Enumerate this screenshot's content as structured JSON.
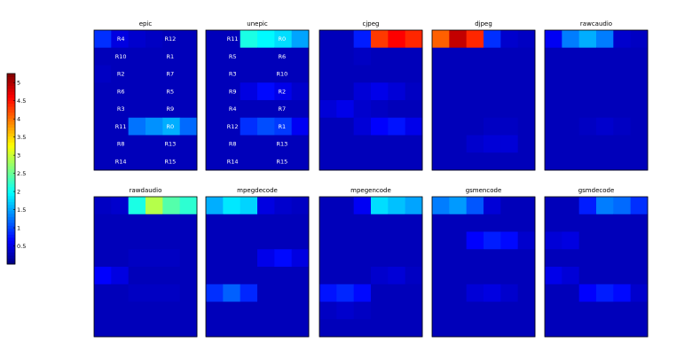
{
  "chart_data": {
    "type": "heatmap",
    "colormap": "jet",
    "vmin": 0,
    "vmax": 5.25,
    "colorbar": {
      "ticks": [
        0.5,
        1,
        1.5,
        2,
        2.5,
        3,
        3.5,
        4,
        4.5,
        5
      ],
      "labels": [
        "0.5",
        "1",
        "1.5",
        "2",
        "2.5",
        "3",
        "3.5",
        "4",
        "4.5",
        "5"
      ]
    },
    "panels": [
      {
        "title": "epic",
        "labels": [
          [
            "R4",
            "R12"
          ],
          [
            "R10",
            "R1"
          ],
          [
            "R2",
            "R7"
          ],
          [
            "R6",
            "R5"
          ],
          [
            "R3",
            "R9"
          ],
          [
            "R11",
            "R0"
          ],
          [
            "R8",
            "R13"
          ],
          [
            "R14",
            "R15"
          ]
        ],
        "values": [
          [
            0.9,
            0.5,
            0.4,
            0.35,
            0.3,
            0.3
          ],
          [
            0.3,
            0.3,
            0.3,
            0.3,
            0.3,
            0.3
          ],
          [
            0.35,
            0.3,
            0.3,
            0.3,
            0.3,
            0.3
          ],
          [
            0.3,
            0.3,
            0.3,
            0.3,
            0.3,
            0.3
          ],
          [
            0.3,
            0.3,
            0.3,
            0.3,
            0.3,
            0.3
          ],
          [
            0.3,
            0.3,
            1.25,
            1.4,
            1.55,
            1.2
          ],
          [
            0.3,
            0.3,
            0.3,
            0.3,
            0.3,
            0.3
          ],
          [
            0.3,
            0.3,
            0.3,
            0.3,
            0.3,
            0.3
          ]
        ]
      },
      {
        "title": "unepic",
        "labels": [
          [
            "R11",
            "R0"
          ],
          [
            "R5",
            "R6"
          ],
          [
            "R3",
            "R10"
          ],
          [
            "R9",
            "R2"
          ],
          [
            "R4",
            "R7"
          ],
          [
            "R12",
            "R1"
          ],
          [
            "R8",
            "R13"
          ],
          [
            "R14",
            "R15"
          ]
        ],
        "values": [
          [
            0.3,
            0.3,
            2.1,
            1.95,
            1.8,
            1.5
          ],
          [
            0.3,
            0.3,
            0.3,
            0.3,
            0.3,
            0.3
          ],
          [
            0.3,
            0.3,
            0.3,
            0.3,
            0.3,
            0.3
          ],
          [
            0.3,
            0.3,
            0.5,
            0.7,
            0.55,
            0.4
          ],
          [
            0.3,
            0.3,
            0.3,
            0.3,
            0.3,
            0.3
          ],
          [
            0.3,
            0.3,
            0.9,
            1.05,
            0.95,
            0.6
          ],
          [
            0.3,
            0.3,
            0.3,
            0.3,
            0.3,
            0.3
          ],
          [
            0.3,
            0.3,
            0.3,
            0.3,
            0.3,
            0.3
          ]
        ]
      },
      {
        "title": "cjpeg",
        "values": [
          [
            0.3,
            0.3,
            0.8,
            4.3,
            4.6,
            4.4
          ],
          [
            0.3,
            0.3,
            0.35,
            0.3,
            0.3,
            0.3
          ],
          [
            0.3,
            0.3,
            0.3,
            0.3,
            0.3,
            0.3
          ],
          [
            0.3,
            0.3,
            0.45,
            0.55,
            0.45,
            0.35
          ],
          [
            0.45,
            0.55,
            0.4,
            0.35,
            0.3,
            0.3
          ],
          [
            0.3,
            0.3,
            0.45,
            0.65,
            0.75,
            0.55
          ],
          [
            0.3,
            0.3,
            0.3,
            0.3,
            0.3,
            0.3
          ],
          [
            0.3,
            0.3,
            0.3,
            0.3,
            0.3,
            0.3
          ]
        ]
      },
      {
        "title": "djpeg",
        "values": [
          [
            4.1,
            4.9,
            4.4,
            0.9,
            0.4,
            0.35
          ],
          [
            0.3,
            0.3,
            0.3,
            0.3,
            0.3,
            0.3
          ],
          [
            0.3,
            0.3,
            0.3,
            0.3,
            0.3,
            0.3
          ],
          [
            0.3,
            0.3,
            0.3,
            0.3,
            0.3,
            0.3
          ],
          [
            0.3,
            0.3,
            0.3,
            0.3,
            0.3,
            0.3
          ],
          [
            0.3,
            0.3,
            0.3,
            0.35,
            0.35,
            0.3
          ],
          [
            0.3,
            0.3,
            0.4,
            0.45,
            0.45,
            0.3
          ],
          [
            0.3,
            0.3,
            0.3,
            0.3,
            0.3,
            0.3
          ]
        ]
      },
      {
        "title": "rawcaudio",
        "values": [
          [
            0.6,
            1.3,
            1.55,
            1.3,
            0.4,
            0.35
          ],
          [
            0.3,
            0.3,
            0.3,
            0.3,
            0.3,
            0.3
          ],
          [
            0.3,
            0.3,
            0.3,
            0.3,
            0.3,
            0.3
          ],
          [
            0.3,
            0.3,
            0.3,
            0.3,
            0.3,
            0.3
          ],
          [
            0.3,
            0.3,
            0.3,
            0.3,
            0.3,
            0.3
          ],
          [
            0.3,
            0.3,
            0.35,
            0.4,
            0.35,
            0.3
          ],
          [
            0.3,
            0.3,
            0.3,
            0.3,
            0.3,
            0.3
          ],
          [
            0.3,
            0.3,
            0.3,
            0.3,
            0.3,
            0.3
          ]
        ]
      },
      {
        "title": "rawdaudio",
        "values": [
          [
            0.35,
            0.4,
            2.1,
            2.9,
            2.4,
            2.2
          ],
          [
            0.3,
            0.3,
            0.3,
            0.3,
            0.3,
            0.3
          ],
          [
            0.3,
            0.3,
            0.3,
            0.3,
            0.3,
            0.3
          ],
          [
            0.3,
            0.3,
            0.35,
            0.35,
            0.35,
            0.3
          ],
          [
            0.65,
            0.5,
            0.3,
            0.3,
            0.3,
            0.3
          ],
          [
            0.3,
            0.3,
            0.35,
            0.35,
            0.35,
            0.3
          ],
          [
            0.3,
            0.3,
            0.3,
            0.3,
            0.3,
            0.3
          ],
          [
            0.3,
            0.3,
            0.3,
            0.3,
            0.3,
            0.3
          ]
        ]
      },
      {
        "title": "mpegdecode",
        "values": [
          [
            1.55,
            1.85,
            1.75,
            0.5,
            0.4,
            0.35
          ],
          [
            0.3,
            0.3,
            0.3,
            0.3,
            0.3,
            0.3
          ],
          [
            0.3,
            0.3,
            0.3,
            0.3,
            0.3,
            0.3
          ],
          [
            0.3,
            0.3,
            0.3,
            0.55,
            0.7,
            0.5
          ],
          [
            0.3,
            0.3,
            0.3,
            0.3,
            0.3,
            0.3
          ],
          [
            0.9,
            1.15,
            0.85,
            0.3,
            0.3,
            0.3
          ],
          [
            0.3,
            0.3,
            0.3,
            0.3,
            0.3,
            0.3
          ],
          [
            0.3,
            0.3,
            0.3,
            0.3,
            0.3,
            0.3
          ]
        ]
      },
      {
        "title": "mpegencode",
        "values": [
          [
            0.3,
            0.3,
            0.6,
            1.8,
            1.65,
            1.5
          ],
          [
            0.3,
            0.3,
            0.3,
            0.3,
            0.3,
            0.3
          ],
          [
            0.3,
            0.3,
            0.3,
            0.3,
            0.3,
            0.3
          ],
          [
            0.3,
            0.3,
            0.3,
            0.3,
            0.3,
            0.3
          ],
          [
            0.3,
            0.3,
            0.3,
            0.4,
            0.45,
            0.35
          ],
          [
            0.75,
            0.85,
            0.7,
            0.3,
            0.3,
            0.3
          ],
          [
            0.35,
            0.4,
            0.35,
            0.3,
            0.3,
            0.3
          ],
          [
            0.3,
            0.3,
            0.3,
            0.3,
            0.3,
            0.3
          ]
        ]
      },
      {
        "title": "gsmencode",
        "values": [
          [
            1.3,
            1.45,
            1.1,
            0.45,
            0.3,
            0.3
          ],
          [
            0.3,
            0.3,
            0.3,
            0.3,
            0.3,
            0.3
          ],
          [
            0.3,
            0.3,
            0.65,
            0.8,
            0.7,
            0.4
          ],
          [
            0.3,
            0.3,
            0.3,
            0.3,
            0.3,
            0.3
          ],
          [
            0.3,
            0.3,
            0.3,
            0.3,
            0.3,
            0.3
          ],
          [
            0.3,
            0.3,
            0.45,
            0.5,
            0.4,
            0.3
          ],
          [
            0.3,
            0.3,
            0.3,
            0.3,
            0.3,
            0.3
          ],
          [
            0.3,
            0.3,
            0.3,
            0.3,
            0.3,
            0.3
          ]
        ]
      },
      {
        "title": "gsmdecode",
        "values": [
          [
            0.3,
            0.3,
            0.8,
            1.3,
            1.2,
            0.9
          ],
          [
            0.3,
            0.3,
            0.3,
            0.3,
            0.3,
            0.3
          ],
          [
            0.45,
            0.5,
            0.3,
            0.3,
            0.3,
            0.3
          ],
          [
            0.3,
            0.3,
            0.3,
            0.3,
            0.3,
            0.3
          ],
          [
            0.55,
            0.45,
            0.3,
            0.3,
            0.3,
            0.3
          ],
          [
            0.3,
            0.3,
            0.65,
            0.8,
            0.7,
            0.4
          ],
          [
            0.3,
            0.3,
            0.3,
            0.3,
            0.3,
            0.3
          ],
          [
            0.3,
            0.3,
            0.3,
            0.3,
            0.3,
            0.3
          ]
        ]
      }
    ]
  }
}
